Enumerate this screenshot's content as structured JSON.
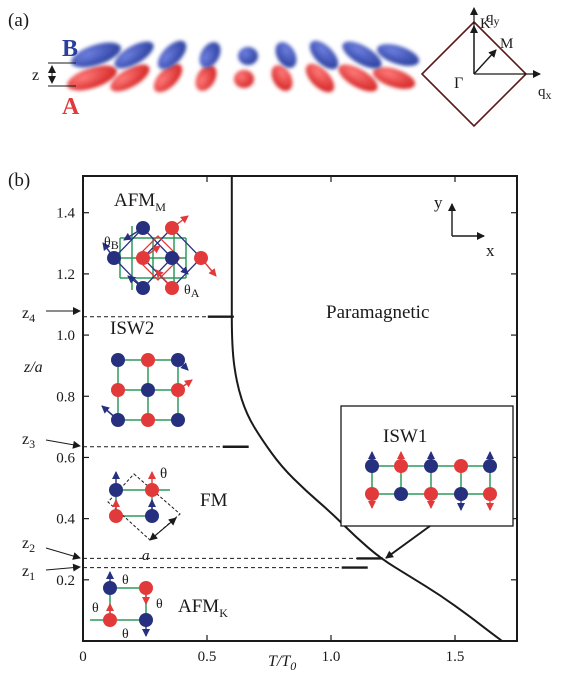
{
  "panel_a": {
    "label": "(a)",
    "layer_top": "B",
    "layer_bottom": "A",
    "z_label": "z",
    "bz": {
      "qy": "q",
      "qy_sub": "y",
      "qx": "q",
      "qx_sub": "x",
      "K": "K",
      "M": "M",
      "Gamma": "Γ"
    },
    "colors": {
      "layer_B": "#2b3f9e",
      "layer_A": "#e23a3a"
    }
  },
  "panel_b": {
    "label": "(b)",
    "axis_label_x": "T/T",
    "axis_label_x_sub": "0",
    "axis_label_y": "z/a",
    "axes_indicator": {
      "y": "y",
      "x": "x"
    },
    "z_markers": [
      {
        "text": "z",
        "sub": "4"
      },
      {
        "text": "z",
        "sub": "3"
      },
      {
        "text": "z",
        "sub": "2"
      },
      {
        "text": "z",
        "sub": "1"
      }
    ],
    "phases": {
      "afm_m": "AFM",
      "afm_m_sub": "M",
      "isw2": "ISW2",
      "fm": "FM",
      "afm_k": "AFM",
      "afm_k_sub": "K",
      "paramagnetic": "Paramagnetic",
      "isw1": "ISW1"
    },
    "annotations": {
      "theta": "θ",
      "theta_A": "θ",
      "theta_A_sub": "A",
      "theta_B": "θ",
      "theta_B_sub": "B",
      "a": "a"
    },
    "colors": {
      "site_A": "#e23a3a",
      "site_B": "#26307f",
      "bond": "#2f9a5a",
      "frame": "#1a1a1a"
    }
  },
  "chart_data": {
    "type": "line",
    "xlabel": "T/T0",
    "ylabel": "z/a",
    "xlim": [
      0,
      1.75
    ],
    "ylim": [
      0,
      1.52
    ],
    "x_ticks": [
      0,
      0.5,
      1.0,
      1.5
    ],
    "x_tick_labels": [
      "0",
      "0.5",
      "1.0",
      "1.5"
    ],
    "y_ticks": [
      0.2,
      0.4,
      0.6,
      0.8,
      1.0,
      1.2,
      1.4
    ],
    "y_tick_labels": [
      "0.2",
      "0.4",
      "0.6",
      "0.8",
      "1.0",
      "1.2",
      "1.4"
    ],
    "boundaries": [
      {
        "name": "AFM_M vertical boundary",
        "x": [
          0.6,
          0.6
        ],
        "y": [
          1.06,
          1.52
        ]
      },
      {
        "name": "phase boundary curve",
        "x": [
          0.6,
          0.6,
          0.62,
          0.66,
          0.72,
          0.8,
          0.9,
          1.0,
          1.1,
          1.2,
          1.32,
          1.44,
          1.56,
          1.64,
          1.69
        ],
        "y": [
          1.06,
          0.96,
          0.84,
          0.74,
          0.66,
          0.57,
          0.49,
          0.42,
          0.34,
          0.27,
          0.21,
          0.15,
          0.08,
          0.03,
          0.0
        ]
      }
    ],
    "dashed_lines": [
      {
        "name": "z4",
        "y": 1.06,
        "x_end": 0.6
      },
      {
        "name": "z3",
        "y": 0.635,
        "x_end": 0.66
      },
      {
        "name": "z2",
        "y": 0.27,
        "x_end": 1.2
      },
      {
        "name": "z1",
        "y": 0.24,
        "x_end": 1.14
      }
    ]
  }
}
